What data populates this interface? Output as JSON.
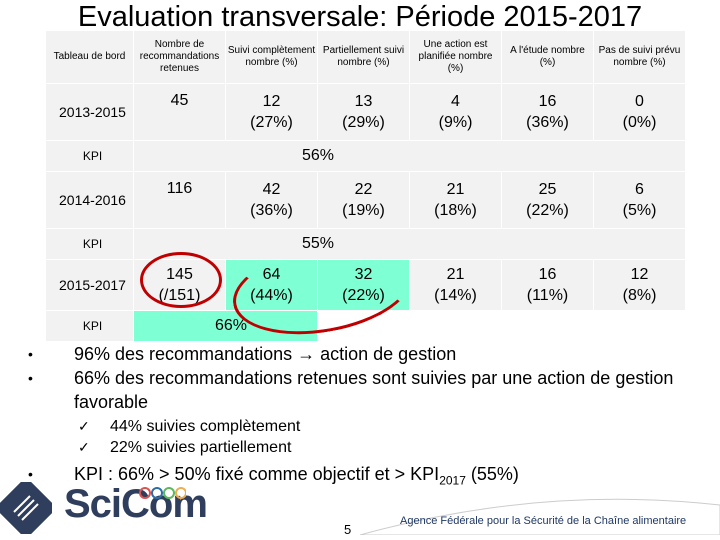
{
  "title": "Evaluation transversale: Période 2015-2017",
  "headers": [
    "Tableau de bord",
    "Nombre de recommandations retenues",
    "Suivi complètement nombre (%)",
    "Partiellement suivi nombre (%)",
    "Une action est planifiée nombre (%)",
    "A l'étude nombre (%)",
    "Pas de suivi prévu nombre (%)"
  ],
  "rows": [
    {
      "label": "2013-2015",
      "values": [
        [
          "45",
          ""
        ],
        [
          "12",
          "(27%)"
        ],
        [
          "13",
          "(29%)"
        ],
        [
          "4",
          "(9%)"
        ],
        [
          "16",
          "(36%)"
        ],
        [
          "0",
          "(0%)"
        ]
      ],
      "kpi_label": "KPI",
      "kpi": "56%"
    },
    {
      "label": "2014-2016",
      "values": [
        [
          "116",
          ""
        ],
        [
          "42",
          "(36%)"
        ],
        [
          "22",
          "(19%)"
        ],
        [
          "21",
          "(18%)"
        ],
        [
          "25",
          "(22%)"
        ],
        [
          "6",
          "(5%)"
        ]
      ],
      "kpi_label": "KPI",
      "kpi": "55%"
    },
    {
      "label": "2015-2017",
      "values": [
        [
          "145",
          "(/151)"
        ],
        [
          "64",
          "(44%)"
        ],
        [
          "32",
          "(22%)"
        ],
        [
          "21",
          "(14%)"
        ],
        [
          "16",
          "(11%)"
        ],
        [
          "12",
          "(8%)"
        ]
      ],
      "kpi_label": "KPI",
      "kpi": "66%"
    }
  ],
  "bullets": [
    "96% des recommandations → action de gestion",
    "66% des recommandations retenues sont suivies par une action de gestion favorable"
  ],
  "sub_bullets": [
    "44% suivies complètement",
    "22% suivies partiellement"
  ],
  "bullet3_pre": "KPI : 66% > 50% fixé comme objectif et > KPI",
  "bullet3_sub": "2017",
  "bullet3_post": " (55%)",
  "logo": "SciCom",
  "page_number": "5",
  "agency": "Agence Fédérale pour la Sécurité de la Chaîne alimentaire",
  "colors": {
    "highlight": "#7fffd4",
    "circle": "#c00000",
    "cell": "#f2f2f2"
  }
}
